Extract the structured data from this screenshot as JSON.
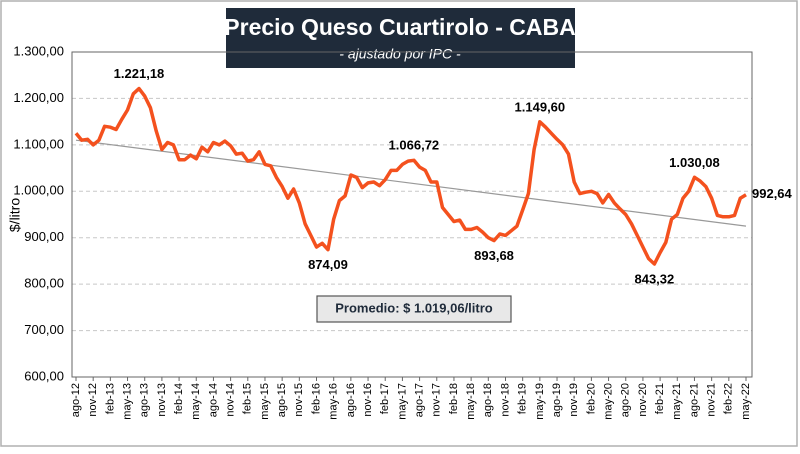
{
  "chart_data": {
    "type": "line",
    "title": "Precio Queso Cuartirolo - CABA",
    "subtitle": "- ajustado por IPC -",
    "y_label": "$/litro",
    "annotation": "Promedio: $ 1.019,06/litro",
    "color": "#f4511e",
    "grid": true,
    "ylim": [
      600,
      1300
    ],
    "yticks": [
      {
        "value": 600,
        "label": "600,00"
      },
      {
        "value": 700,
        "label": "700,00"
      },
      {
        "value": 800,
        "label": "800,00"
      },
      {
        "value": 900,
        "label": "900,00"
      },
      {
        "value": 1000,
        "label": "1.000,00"
      },
      {
        "value": 1100,
        "label": "1.100,00"
      },
      {
        "value": 1200,
        "label": "1.200,00"
      },
      {
        "value": 1300,
        "label": "1.300,00"
      }
    ],
    "categories": [
      "ago-12",
      null,
      null,
      "nov-12",
      null,
      null,
      "feb-13",
      null,
      null,
      "may-13",
      null,
      null,
      "ago-13",
      null,
      null,
      "nov-13",
      null,
      null,
      "feb-14",
      null,
      null,
      "may-14",
      null,
      null,
      "ago-14",
      null,
      null,
      "nov-14",
      null,
      null,
      "feb-15",
      null,
      null,
      "may-15",
      null,
      null,
      "ago-15",
      null,
      null,
      "nov-15",
      null,
      null,
      "feb-16",
      null,
      null,
      "may-16",
      null,
      null,
      "ago-16",
      null,
      null,
      "nov-16",
      null,
      null,
      "feb-17",
      null,
      null,
      "may-17",
      null,
      null,
      "ago-17",
      null,
      null,
      "nov-17",
      null,
      null,
      "feb-18",
      null,
      null,
      "may-18",
      null,
      null,
      "ago-18",
      null,
      null,
      "nov-18",
      null,
      null,
      "feb-19",
      null,
      null,
      "may-19",
      null,
      null,
      "ago-19",
      null,
      null,
      "nov-19",
      null,
      null,
      "feb-20",
      null,
      null,
      "may-20",
      null,
      null,
      "ago-20",
      null,
      null,
      "nov-20",
      null,
      null,
      "feb-21",
      null,
      null,
      "may-21",
      null,
      null,
      "ago-21",
      null,
      null,
      "nov-21",
      null,
      null,
      "feb-22",
      null,
      null,
      "may-22"
    ],
    "values": [
      1125,
      1110,
      1112,
      1100,
      1110,
      1140,
      1138,
      1133,
      1155,
      1175,
      1210,
      1221.18,
      1205,
      1180,
      1130,
      1090,
      1105,
      1100,
      1068,
      1068,
      1078,
      1070,
      1095,
      1085,
      1105,
      1100,
      1108,
      1098,
      1080,
      1082,
      1065,
      1068,
      1085,
      1058,
      1055,
      1030,
      1010,
      985,
      1005,
      975,
      930,
      905,
      880,
      888,
      874.09,
      940,
      980,
      990,
      1035,
      1030,
      1008,
      1018,
      1020,
      1012,
      1025,
      1045,
      1045,
      1058,
      1065,
      1066.72,
      1052,
      1045,
      1020,
      1020,
      965,
      950,
      935,
      938,
      918,
      918,
      922,
      912,
      900,
      893.68,
      908,
      905,
      915,
      925,
      960,
      995,
      1090,
      1149.6,
      1138,
      1125,
      1112,
      1100,
      1080,
      1020,
      995,
      998,
      1000,
      995,
      975,
      993,
      975,
      962,
      950,
      930,
      905,
      880,
      855,
      843.32,
      868,
      890,
      940,
      950,
      985,
      1000,
      1030.08,
      1022,
      1010,
      985,
      948,
      945,
      945,
      948,
      985,
      992.64
    ],
    "value_labels": [
      null,
      null,
      null,
      null,
      null,
      null,
      null,
      null,
      null,
      null,
      null,
      "1.221,18",
      null,
      null,
      null,
      null,
      null,
      null,
      null,
      null,
      null,
      null,
      null,
      null,
      null,
      null,
      null,
      null,
      null,
      null,
      null,
      null,
      null,
      null,
      null,
      null,
      null,
      null,
      null,
      null,
      null,
      null,
      null,
      null,
      "874,09",
      null,
      null,
      null,
      null,
      null,
      null,
      null,
      null,
      null,
      null,
      null,
      null,
      null,
      null,
      "1.066,72",
      null,
      null,
      null,
      null,
      null,
      null,
      null,
      null,
      null,
      null,
      null,
      null,
      null,
      "893,68",
      null,
      null,
      null,
      null,
      null,
      null,
      null,
      "1.149,60",
      null,
      null,
      null,
      null,
      null,
      null,
      null,
      null,
      null,
      null,
      null,
      null,
      null,
      null,
      null,
      null,
      null,
      null,
      null,
      "843,32",
      null,
      null,
      null,
      null,
      null,
      null,
      "1.030,08",
      null,
      null,
      null,
      null,
      null,
      null,
      null,
      null,
      "992,64"
    ],
    "trend_line": {
      "values": [
        1110,
        925
      ],
      "color": "#999999"
    }
  }
}
